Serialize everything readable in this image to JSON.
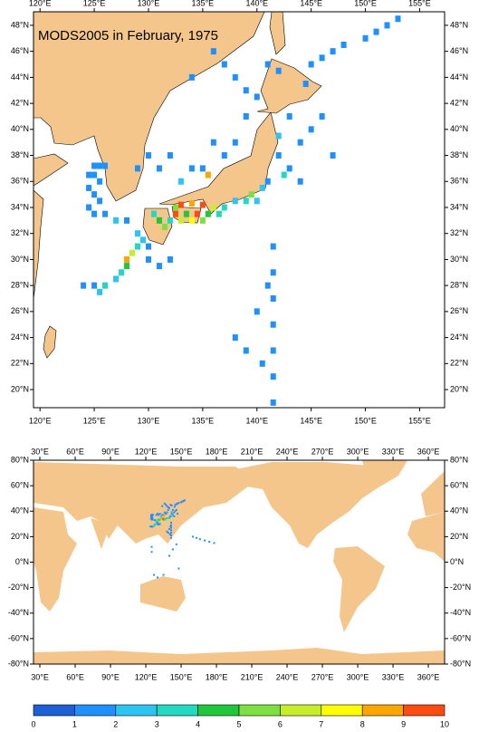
{
  "maps": [
    {
      "title": "MODS2005 in February, 1975",
      "xlim": [
        119.4,
        157.3
      ],
      "ylim": [
        18.61,
        49.04
      ],
      "lon_ticks": [
        {
          "value": 120,
          "label": "120°E"
        },
        {
          "value": 125,
          "label": "125°E"
        },
        {
          "value": 130,
          "label": "130°E"
        },
        {
          "value": 135,
          "label": "135°E"
        },
        {
          "value": 140,
          "label": "140°E"
        },
        {
          "value": 145,
          "label": "145°E"
        },
        {
          "value": 150,
          "label": "150°E"
        },
        {
          "value": 155,
          "label": "155°E"
        }
      ],
      "lat_ticks": [
        {
          "value": 48,
          "label": "48°N"
        },
        {
          "value": 46,
          "label": "46°N"
        },
        {
          "value": 44,
          "label": "44°N"
        },
        {
          "value": 42,
          "label": "42°N"
        },
        {
          "value": 40,
          "label": "40°N"
        },
        {
          "value": 38,
          "label": "38°N"
        },
        {
          "value": 36,
          "label": "36°N"
        },
        {
          "value": 34,
          "label": "34°N"
        },
        {
          "value": 32,
          "label": "32°N"
        },
        {
          "value": 30,
          "label": "30°N"
        },
        {
          "value": 28,
          "label": "28°N"
        },
        {
          "value": 26,
          "label": "26°N"
        },
        {
          "value": 24,
          "label": "24°N"
        },
        {
          "value": 22,
          "label": "22°N"
        },
        {
          "value": 20,
          "label": "20°N"
        }
      ],
      "cells": [
        [
          125,
          37.2,
          1
        ],
        [
          125.5,
          37.2,
          1
        ],
        [
          126,
          37.2,
          1
        ],
        [
          124.5,
          36.5,
          1
        ],
        [
          125,
          36.5,
          1.5
        ],
        [
          125.5,
          36,
          1
        ],
        [
          124.5,
          35.5,
          1
        ],
        [
          125,
          35,
          1
        ],
        [
          125.5,
          34.5,
          1.5
        ],
        [
          124.5,
          34,
          1
        ],
        [
          125,
          33.5,
          1
        ],
        [
          126,
          33.5,
          1.5
        ],
        [
          127,
          33,
          2
        ],
        [
          128,
          33,
          1.5
        ],
        [
          129,
          37,
          1.5
        ],
        [
          130,
          38,
          1.5
        ],
        [
          131,
          37,
          1.5
        ],
        [
          132,
          38,
          1
        ],
        [
          133,
          36,
          2
        ],
        [
          134,
          37,
          1
        ],
        [
          135,
          37,
          1.5
        ],
        [
          135.5,
          36.5,
          8.5
        ],
        [
          136,
          39,
          1
        ],
        [
          137,
          38,
          1.5
        ],
        [
          138,
          39,
          1
        ],
        [
          139,
          41,
          1.5
        ],
        [
          140,
          42.5,
          1
        ],
        [
          138,
          44,
          1
        ],
        [
          139,
          43,
          1.5
        ],
        [
          130.5,
          33.5,
          3
        ],
        [
          131,
          33,
          4
        ],
        [
          131.5,
          32.5,
          5
        ],
        [
          132,
          33,
          3.5
        ],
        [
          132.5,
          33.5,
          9.5
        ],
        [
          133,
          33,
          6
        ],
        [
          133.5,
          33.5,
          4.5
        ],
        [
          134,
          33,
          7.5
        ],
        [
          134.5,
          33.5,
          9
        ],
        [
          135,
          33,
          5
        ],
        [
          135.5,
          33.5,
          4
        ],
        [
          136,
          34,
          6.5
        ],
        [
          136.5,
          33.5,
          3
        ],
        [
          137,
          34,
          3.5
        ],
        [
          138,
          34.5,
          2.5
        ],
        [
          139,
          34.5,
          3
        ],
        [
          139.5,
          35,
          5.5
        ],
        [
          140,
          34.5,
          2
        ],
        [
          140.5,
          35.5,
          2.5
        ],
        [
          141,
          36,
          1.5
        ],
        [
          133,
          34.2,
          9.5
        ],
        [
          134,
          34.3,
          8.5
        ],
        [
          135,
          34.2,
          9
        ],
        [
          132.5,
          34,
          5.5
        ],
        [
          128,
          30,
          8.5
        ],
        [
          128.5,
          30.5,
          6
        ],
        [
          128,
          29.5,
          4.5
        ],
        [
          127.5,
          29,
          3
        ],
        [
          127,
          28.5,
          2
        ],
        [
          126,
          28,
          3
        ],
        [
          125.5,
          27.5,
          2
        ],
        [
          125,
          28,
          1.5
        ],
        [
          124,
          28,
          1
        ],
        [
          129,
          31,
          3
        ],
        [
          129.5,
          31.5,
          2
        ],
        [
          130,
          31,
          1.5
        ],
        [
          129,
          32,
          2.5
        ],
        [
          130,
          30,
          1.5
        ],
        [
          131,
          29.5,
          1
        ],
        [
          132,
          30,
          1
        ],
        [
          141.5,
          31,
          1
        ],
        [
          141.5,
          29,
          1
        ],
        [
          141.5,
          27,
          1
        ],
        [
          141.5,
          25,
          1
        ],
        [
          141.5,
          23,
          1
        ],
        [
          141.5,
          21,
          1
        ],
        [
          141.5,
          19,
          1
        ],
        [
          141,
          28,
          1
        ],
        [
          140,
          26,
          1
        ],
        [
          139,
          23,
          1
        ],
        [
          140.5,
          22,
          1
        ],
        [
          138,
          24,
          1
        ],
        [
          142,
          38,
          1
        ],
        [
          143,
          37,
          1
        ],
        [
          144,
          39,
          1
        ],
        [
          145,
          40,
          1.5
        ],
        [
          146,
          41,
          1
        ],
        [
          147,
          38,
          1
        ],
        [
          143,
          41,
          1.5
        ],
        [
          144,
          36,
          1.5
        ],
        [
          142.5,
          36.5,
          3
        ],
        [
          142,
          39.5,
          2
        ],
        [
          145,
          45,
          1
        ],
        [
          146,
          45.5,
          1
        ],
        [
          147,
          46,
          1
        ],
        [
          148,
          46.5,
          1
        ],
        [
          150,
          47,
          1
        ],
        [
          151,
          47.5,
          1
        ],
        [
          152,
          48,
          1
        ],
        [
          153,
          48.5,
          1
        ],
        [
          144.5,
          43.5,
          1
        ],
        [
          142,
          44.5,
          1
        ],
        [
          141,
          45,
          1
        ],
        [
          136,
          46,
          1
        ],
        [
          137,
          45,
          1
        ],
        [
          134,
          44,
          1.5
        ]
      ]
    },
    {
      "xlim": [
        24.6,
        373.8
      ],
      "ylim": [
        -80,
        80
      ],
      "lon_ticks": [
        {
          "value": 30,
          "label": "30°E"
        },
        {
          "value": 60,
          "label": "60°E"
        },
        {
          "value": 90,
          "label": "90°E"
        },
        {
          "value": 120,
          "label": "120°E"
        },
        {
          "value": 150,
          "label": "150°E"
        },
        {
          "value": 180,
          "label": "180°E"
        },
        {
          "value": 210,
          "label": "210°E"
        },
        {
          "value": 240,
          "label": "240°E"
        },
        {
          "value": 270,
          "label": "270°E"
        },
        {
          "value": 300,
          "label": "300°E"
        },
        {
          "value": 330,
          "label": "330°E"
        },
        {
          "value": 360,
          "label": "360°E"
        }
      ],
      "lat_ticks": [
        {
          "value": 80,
          "label": "80°N"
        },
        {
          "value": 60,
          "label": "60°N"
        },
        {
          "value": 40,
          "label": "40°N"
        },
        {
          "value": 20,
          "label": "20°N"
        },
        {
          "value": 0,
          "label": "0°N"
        },
        {
          "value": -20,
          "label": "-20°N"
        },
        {
          "value": -40,
          "label": "-40°N"
        },
        {
          "value": -60,
          "label": "-60°N"
        },
        {
          "value": -80,
          "label": "-80°N"
        }
      ],
      "cells": [
        [
          160,
          20,
          1
        ],
        [
          163,
          19,
          1
        ],
        [
          166,
          18,
          1
        ],
        [
          170,
          17,
          1
        ],
        [
          174,
          16,
          1
        ],
        [
          178,
          15,
          1
        ],
        [
          125,
          12,
          1
        ],
        [
          125,
          8,
          1
        ],
        [
          127,
          -10,
          1
        ],
        [
          130,
          -12,
          1
        ],
        [
          135,
          -10,
          1
        ],
        [
          140,
          5,
          1
        ],
        [
          143,
          10,
          1
        ],
        [
          146,
          14,
          1
        ],
        [
          148,
          -5,
          1
        ]
      ]
    }
  ],
  "colorbar": {
    "levels": [
      0,
      1,
      2,
      3,
      4,
      5,
      6,
      7,
      8,
      9,
      10
    ],
    "colors": [
      "#1f5fd6",
      "#1e90ff",
      "#2cc4f0",
      "#22d8c0",
      "#1ec83a",
      "#7ce040",
      "#c8ee2a",
      "#ffff00",
      "#ffa500",
      "#ff4a10"
    ]
  }
}
